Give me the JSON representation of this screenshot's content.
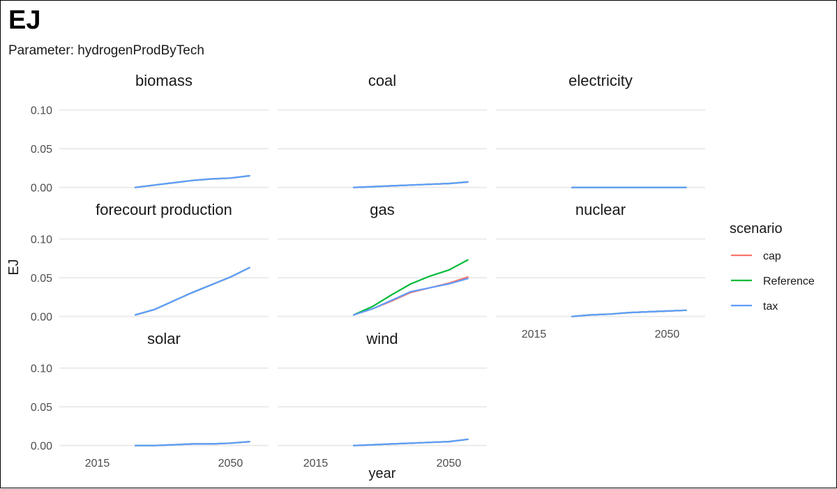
{
  "chart_data": {
    "type": "line",
    "title": "EJ",
    "subtitle": "Parameter: hydrogenProdByTech",
    "xlabel": "year",
    "ylabel": "EJ",
    "x_ticks": [
      2015,
      2050
    ],
    "y_ticks": [
      "0.00",
      "0.05",
      "0.10"
    ],
    "xlim": [
      2005,
      2060
    ],
    "ylim": [
      -0.003,
      0.115
    ],
    "grid": true,
    "legend": {
      "title": "scenario",
      "position": "right",
      "entries": [
        {
          "name": "cap",
          "color": "#F8766D"
        },
        {
          "name": "Reference",
          "color": "#00BA38"
        },
        {
          "name": "tax",
          "color": "#619CFF"
        }
      ]
    },
    "panels": [
      {
        "name": "biomass",
        "x": [
          2025,
          2030,
          2035,
          2040,
          2045,
          2050,
          2055
        ],
        "series": [
          {
            "name": "cap",
            "values": [
              0.0,
              0.003,
              0.006,
              0.009,
              0.011,
              0.012,
              0.015
            ]
          },
          {
            "name": "Reference",
            "values": [
              0.0,
              0.003,
              0.006,
              0.009,
              0.011,
              0.012,
              0.015
            ]
          },
          {
            "name": "tax",
            "values": [
              0.0,
              0.003,
              0.006,
              0.009,
              0.011,
              0.012,
              0.015
            ]
          }
        ]
      },
      {
        "name": "coal",
        "x": [
          2025,
          2030,
          2035,
          2040,
          2045,
          2050,
          2055
        ],
        "series": [
          {
            "name": "cap",
            "values": [
              0.0,
              0.001,
              0.002,
              0.003,
              0.004,
              0.005,
              0.007
            ]
          },
          {
            "name": "Reference",
            "values": [
              0.0,
              0.001,
              0.002,
              0.003,
              0.004,
              0.005,
              0.007
            ]
          },
          {
            "name": "tax",
            "values": [
              0.0,
              0.001,
              0.002,
              0.003,
              0.004,
              0.005,
              0.007
            ]
          }
        ]
      },
      {
        "name": "electricity",
        "x": [
          2025,
          2030,
          2035,
          2040,
          2045,
          2050,
          2055
        ],
        "series": [
          {
            "name": "cap",
            "values": [
              0.0,
              0.0,
              0.0,
              0.0,
              0.0,
              0.0,
              0.0
            ]
          },
          {
            "name": "Reference",
            "values": [
              0.0,
              0.0,
              0.0,
              0.0,
              0.0,
              0.0,
              0.0
            ]
          },
          {
            "name": "tax",
            "values": [
              0.0,
              0.0,
              0.0,
              0.0,
              0.0,
              0.0,
              0.0
            ]
          }
        ]
      },
      {
        "name": "forecourt production",
        "x": [
          2025,
          2030,
          2035,
          2040,
          2045,
          2050,
          2055
        ],
        "series": [
          {
            "name": "cap",
            "values": [
              0.002,
              0.009,
              0.02,
              0.031,
              0.041,
              0.051,
              0.063
            ]
          },
          {
            "name": "Reference",
            "values": [
              0.002,
              0.009,
              0.02,
              0.031,
              0.041,
              0.051,
              0.063
            ]
          },
          {
            "name": "tax",
            "values": [
              0.002,
              0.009,
              0.02,
              0.031,
              0.041,
              0.051,
              0.063
            ]
          }
        ]
      },
      {
        "name": "gas",
        "x": [
          2025,
          2030,
          2035,
          2040,
          2045,
          2050,
          2055
        ],
        "series": [
          {
            "name": "cap",
            "values": [
              0.002,
              0.01,
              0.02,
              0.031,
              0.037,
              0.043,
              0.051
            ]
          },
          {
            "name": "Reference",
            "values": [
              0.002,
              0.013,
              0.028,
              0.042,
              0.052,
              0.06,
              0.073
            ]
          },
          {
            "name": "tax",
            "values": [
              0.002,
              0.01,
              0.021,
              0.032,
              0.037,
              0.042,
              0.049
            ]
          }
        ]
      },
      {
        "name": "nuclear",
        "x": [
          2025,
          2030,
          2035,
          2040,
          2045,
          2050,
          2055
        ],
        "series": [
          {
            "name": "cap",
            "values": [
              0.0,
              0.002,
              0.003,
              0.005,
              0.006,
              0.007,
              0.008
            ]
          },
          {
            "name": "Reference",
            "values": [
              0.0,
              0.002,
              0.003,
              0.005,
              0.006,
              0.007,
              0.008
            ]
          },
          {
            "name": "tax",
            "values": [
              0.0,
              0.002,
              0.003,
              0.005,
              0.006,
              0.007,
              0.008
            ]
          }
        ]
      },
      {
        "name": "solar",
        "x": [
          2025,
          2030,
          2035,
          2040,
          2045,
          2050,
          2055
        ],
        "series": [
          {
            "name": "cap",
            "values": [
              0.0,
              0.0,
              0.001,
              0.002,
              0.002,
              0.003,
              0.005
            ]
          },
          {
            "name": "Reference",
            "values": [
              0.0,
              0.0,
              0.001,
              0.002,
              0.002,
              0.003,
              0.005
            ]
          },
          {
            "name": "tax",
            "values": [
              0.0,
              0.0,
              0.001,
              0.002,
              0.002,
              0.003,
              0.005
            ]
          }
        ]
      },
      {
        "name": "wind",
        "x": [
          2025,
          2030,
          2035,
          2040,
          2045,
          2050,
          2055
        ],
        "series": [
          {
            "name": "cap",
            "values": [
              0.0,
              0.001,
              0.002,
              0.003,
              0.004,
              0.005,
              0.008
            ]
          },
          {
            "name": "Reference",
            "values": [
              0.0,
              0.001,
              0.002,
              0.003,
              0.004,
              0.005,
              0.008
            ]
          },
          {
            "name": "tax",
            "values": [
              0.0,
              0.001,
              0.002,
              0.003,
              0.004,
              0.005,
              0.008
            ]
          }
        ]
      }
    ]
  }
}
